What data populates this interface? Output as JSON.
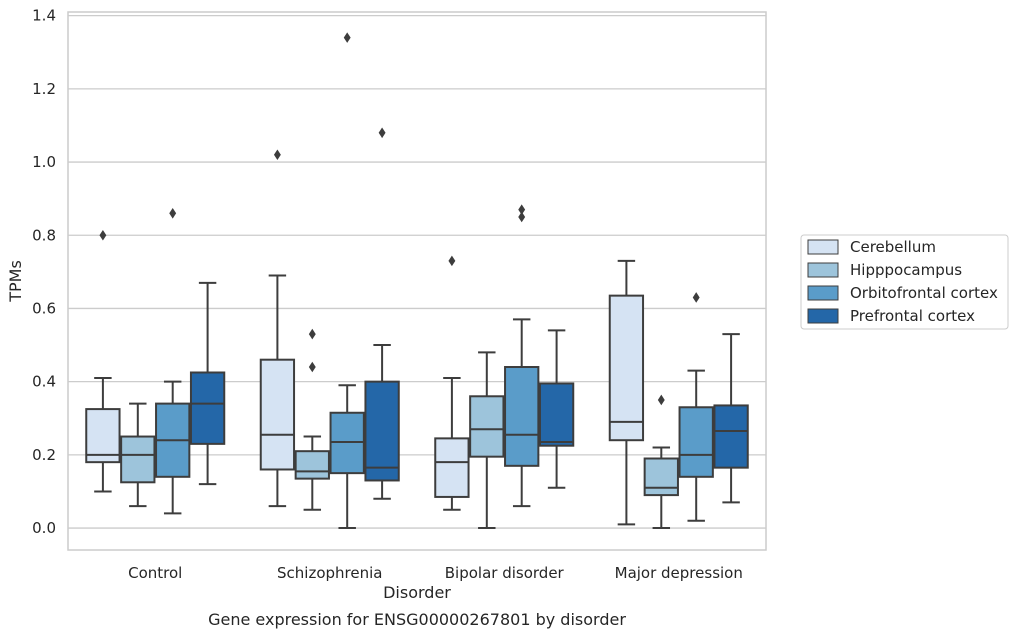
{
  "caption": "Gene expression for ENSG00000267801 by disorder",
  "chart_data": {
    "type": "box",
    "title": "",
    "xlabel": "Disorder",
    "ylabel": "TPMs",
    "ylim": [
      -0.06,
      1.41
    ],
    "yticks": [
      0.0,
      0.2,
      0.4,
      0.6,
      0.8,
      1.0,
      1.2,
      1.4
    ],
    "ytick_labels": [
      "0.0",
      "0.2",
      "0.4",
      "0.6",
      "0.8",
      "1.0",
      "1.2",
      "1.4"
    ],
    "grid": "horizontal",
    "legend_position": "right",
    "categories": [
      "Control",
      "Schizophrenia",
      "Bipolar disorder",
      "Major depression"
    ],
    "series": [
      {
        "name": "Cerebellum",
        "color": "#d5e3f3",
        "boxes": [
          {
            "whisker_low": 0.1,
            "q1": 0.18,
            "median": 0.2,
            "q3": 0.325,
            "whisker_high": 0.41,
            "outliers": [
              0.8
            ]
          },
          {
            "whisker_low": 0.06,
            "q1": 0.16,
            "median": 0.255,
            "q3": 0.46,
            "whisker_high": 0.69,
            "outliers": [
              1.02
            ]
          },
          {
            "whisker_low": 0.05,
            "q1": 0.085,
            "median": 0.18,
            "q3": 0.245,
            "whisker_high": 0.41,
            "outliers": [
              0.73
            ]
          },
          {
            "whisker_low": 0.01,
            "q1": 0.24,
            "median": 0.29,
            "q3": 0.635,
            "whisker_high": 0.73,
            "outliers": []
          }
        ]
      },
      {
        "name": "Hipppocampus",
        "color": "#9dc4db",
        "boxes": [
          {
            "whisker_low": 0.06,
            "q1": 0.125,
            "median": 0.2,
            "q3": 0.25,
            "whisker_high": 0.34,
            "outliers": []
          },
          {
            "whisker_low": 0.05,
            "q1": 0.135,
            "median": 0.155,
            "q3": 0.21,
            "whisker_high": 0.25,
            "outliers": [
              0.44,
              0.53
            ]
          },
          {
            "whisker_low": 0.0,
            "q1": 0.195,
            "median": 0.27,
            "q3": 0.36,
            "whisker_high": 0.48,
            "outliers": []
          },
          {
            "whisker_low": 0.0,
            "q1": 0.09,
            "median": 0.11,
            "q3": 0.19,
            "whisker_high": 0.22,
            "outliers": [
              0.35
            ]
          }
        ]
      },
      {
        "name": "Orbitofrontal cortex",
        "color": "#5a9cc9",
        "boxes": [
          {
            "whisker_low": 0.04,
            "q1": 0.14,
            "median": 0.24,
            "q3": 0.34,
            "whisker_high": 0.4,
            "outliers": [
              0.86
            ]
          },
          {
            "whisker_low": 0.0,
            "q1": 0.15,
            "median": 0.235,
            "q3": 0.315,
            "whisker_high": 0.39,
            "outliers": [
              1.34
            ]
          },
          {
            "whisker_low": 0.06,
            "q1": 0.17,
            "median": 0.255,
            "q3": 0.44,
            "whisker_high": 0.57,
            "outliers": [
              0.85,
              0.87
            ]
          },
          {
            "whisker_low": 0.02,
            "q1": 0.14,
            "median": 0.2,
            "q3": 0.33,
            "whisker_high": 0.43,
            "outliers": [
              0.63
            ]
          }
        ]
      },
      {
        "name": "Prefrontal cortex",
        "color": "#2467a8",
        "boxes": [
          {
            "whisker_low": 0.12,
            "q1": 0.23,
            "median": 0.34,
            "q3": 0.425,
            "whisker_high": 0.67,
            "outliers": []
          },
          {
            "whisker_low": 0.08,
            "q1": 0.13,
            "median": 0.165,
            "q3": 0.4,
            "whisker_high": 0.5,
            "outliers": [
              1.08
            ]
          },
          {
            "whisker_low": 0.11,
            "q1": 0.225,
            "median": 0.235,
            "q3": 0.395,
            "whisker_high": 0.54,
            "outliers": []
          },
          {
            "whisker_low": 0.07,
            "q1": 0.165,
            "median": 0.265,
            "q3": 0.335,
            "whisker_high": 0.53,
            "outliers": []
          }
        ]
      }
    ]
  }
}
